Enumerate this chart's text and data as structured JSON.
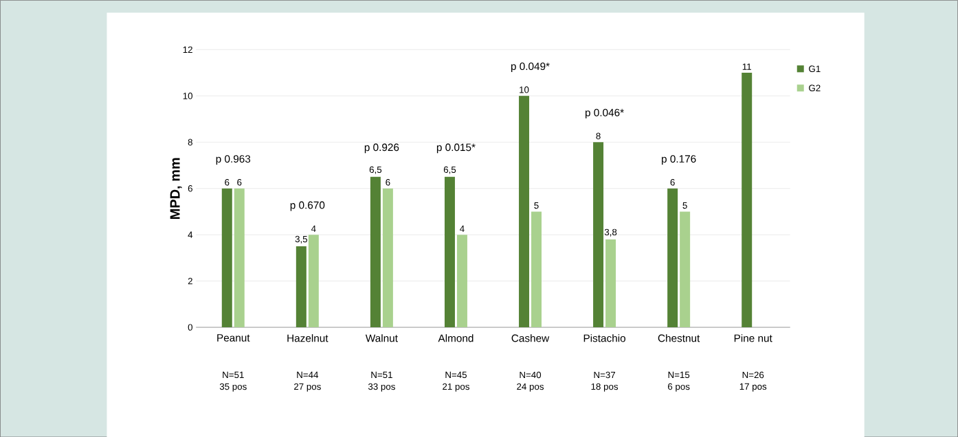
{
  "chart_data": {
    "type": "bar",
    "ylabel": "MPD, mm",
    "categories": [
      "Peanut",
      "Hazelnut",
      "Walnut",
      "Almond",
      "Cashew",
      "Pistachio",
      "Chestnut",
      "Pine nut"
    ],
    "series": [
      {
        "name": "G1",
        "color": "#548235",
        "values": [
          6,
          3.5,
          6.5,
          6.5,
          10,
          8,
          6,
          11
        ],
        "value_labels": [
          "6",
          "3,5",
          "6,5",
          "6,5",
          "10",
          "8",
          "6",
          "11"
        ]
      },
      {
        "name": "G2",
        "color": "#a9d18e",
        "values": [
          6,
          4,
          6,
          4,
          5,
          3.8,
          5,
          null
        ],
        "value_labels": [
          "6",
          "4",
          "6",
          "4",
          "5",
          "3,8",
          "5",
          null
        ]
      }
    ],
    "ylim": [
      0,
      12
    ],
    "yticks": [
      0,
      2,
      4,
      6,
      8,
      10,
      12
    ],
    "grid": "y",
    "legend": "top right",
    "annotations": [
      "p 0.963",
      "p 0.670",
      "p 0.926",
      "p 0.015*",
      "p 0.049*",
      "p 0.046*",
      "p 0.176",
      "N=51",
      "35 pos",
      "N=44",
      "27 pos",
      "N=51",
      "33 pos",
      "N=45",
      "21 pos",
      "N=40",
      "24 pos",
      "N=37",
      "18 pos",
      "N=15",
      "6 pos",
      "N=26",
      "17 pos"
    ]
  }
}
